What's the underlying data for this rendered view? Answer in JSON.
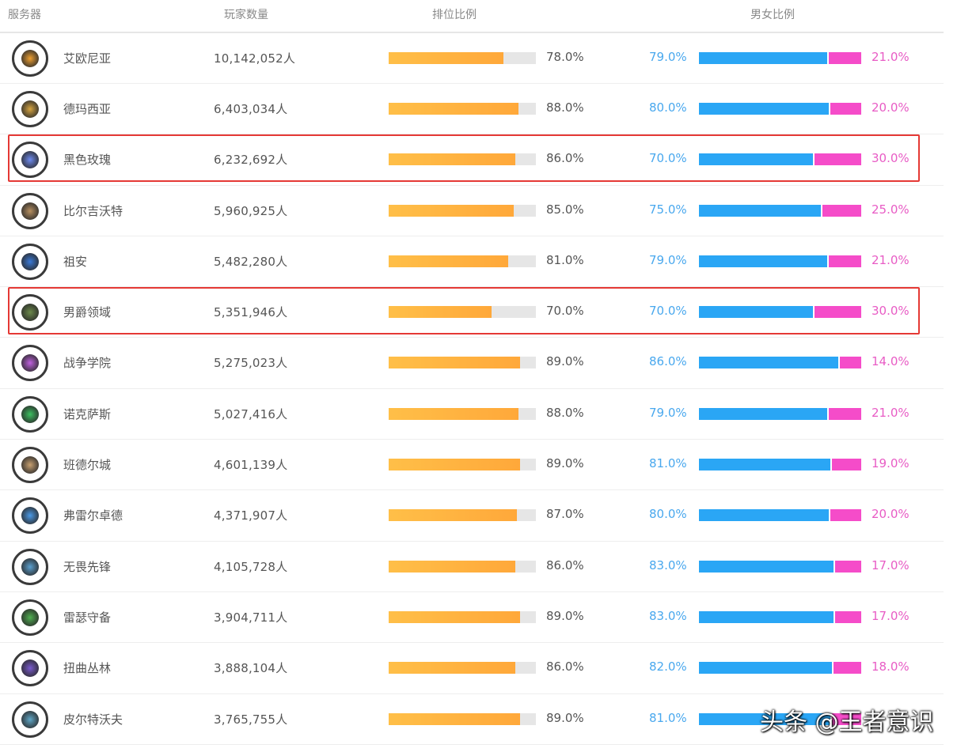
{
  "header": {
    "server": "服务器",
    "players": "玩家数量",
    "rank_ratio": "排位比例",
    "gender_ratio": "男女比例"
  },
  "colors": {
    "rank_bar": "#ffb040",
    "male_bar": "#2aa6f5",
    "female_bar": "#f54cc9",
    "highlight": "#e53935"
  },
  "rows": [
    {
      "name": "艾欧尼亚",
      "count": "10,142,052人",
      "rank": 78,
      "rank_label": "78.0%",
      "male": 79,
      "male_label": "79.0%",
      "female_label": "21.0%",
      "icon": "ionia-emblem-icon",
      "emblem": "#f0a030",
      "highlighted": false
    },
    {
      "name": "德玛西亚",
      "count": "6,403,034人",
      "rank": 88,
      "rank_label": "88.0%",
      "male": 80,
      "male_label": "80.0%",
      "female_label": "20.0%",
      "icon": "demacia-emblem-icon",
      "emblem": "#d9a640",
      "highlighted": false
    },
    {
      "name": "黑色玫瑰",
      "count": "6,232,692人",
      "rank": 86,
      "rank_label": "86.0%",
      "male": 70,
      "male_label": "70.0%",
      "female_label": "30.0%",
      "icon": "black-rose-emblem-icon",
      "emblem": "#6f8cf2",
      "highlighted": true
    },
    {
      "name": "比尔吉沃特",
      "count": "5,960,925人",
      "rank": 85,
      "rank_label": "85.0%",
      "male": 75,
      "male_label": "75.0%",
      "female_label": "25.0%",
      "icon": "bilgewater-emblem-icon",
      "emblem": "#b89060",
      "highlighted": false
    },
    {
      "name": "祖安",
      "count": "5,482,280人",
      "rank": 81,
      "rank_label": "81.0%",
      "male": 79,
      "male_label": "79.0%",
      "female_label": "21.0%",
      "icon": "zaun-emblem-icon",
      "emblem": "#3a7ad8",
      "highlighted": false
    },
    {
      "name": "男爵领域",
      "count": "5,351,946人",
      "rank": 70,
      "rank_label": "70.0%",
      "male": 70,
      "male_label": "70.0%",
      "female_label": "30.0%",
      "icon": "baron-emblem-icon",
      "emblem": "#6c8a4a",
      "highlighted": true
    },
    {
      "name": "战争学院",
      "count": "5,275,023人",
      "rank": 89,
      "rank_label": "89.0%",
      "male": 86,
      "male_label": "86.0%",
      "female_label": "14.0%",
      "icon": "war-academy-emblem-icon",
      "emblem": "#c060e0",
      "highlighted": false
    },
    {
      "name": "诺克萨斯",
      "count": "5,027,416人",
      "rank": 88,
      "rank_label": "88.0%",
      "male": 79,
      "male_label": "79.0%",
      "female_label": "21.0%",
      "icon": "noxus-emblem-icon",
      "emblem": "#3cc060",
      "highlighted": false
    },
    {
      "name": "班德尔城",
      "count": "4,601,139人",
      "rank": 89,
      "rank_label": "89.0%",
      "male": 81,
      "male_label": "81.0%",
      "female_label": "19.0%",
      "icon": "bandle-city-emblem-icon",
      "emblem": "#c8a070",
      "highlighted": false
    },
    {
      "name": "弗雷尔卓德",
      "count": "4,371,907人",
      "rank": 87,
      "rank_label": "87.0%",
      "male": 80,
      "male_label": "80.0%",
      "female_label": "20.0%",
      "icon": "freljord-emblem-icon",
      "emblem": "#4a9ae8",
      "highlighted": false
    },
    {
      "name": "无畏先锋",
      "count": "4,105,728人",
      "rank": 86,
      "rank_label": "86.0%",
      "male": 83,
      "male_label": "83.0%",
      "female_label": "17.0%",
      "icon": "vanguard-emblem-icon",
      "emblem": "#5aa0d0",
      "highlighted": false
    },
    {
      "name": "雷瑟守备",
      "count": "3,904,711人",
      "rank": 89,
      "rank_label": "89.0%",
      "male": 83,
      "male_label": "83.0%",
      "female_label": "17.0%",
      "icon": "watchtower-emblem-icon",
      "emblem": "#4fb050",
      "highlighted": false
    },
    {
      "name": "扭曲丛林",
      "count": "3,888,104人",
      "rank": 86,
      "rank_label": "86.0%",
      "male": 82,
      "male_label": "82.0%",
      "female_label": "18.0%",
      "icon": "twisted-treeline-emblem-icon",
      "emblem": "#7a5ad0",
      "highlighted": false
    },
    {
      "name": "皮尔特沃夫",
      "count": "3,765,755人",
      "rank": 89,
      "rank_label": "89.0%",
      "male": 81,
      "male_label": "81.0%",
      "female_label": "",
      "icon": "piltover-emblem-icon",
      "emblem": "#60a8c8",
      "highlighted": false
    }
  ],
  "watermark": "头条 @王者意识"
}
